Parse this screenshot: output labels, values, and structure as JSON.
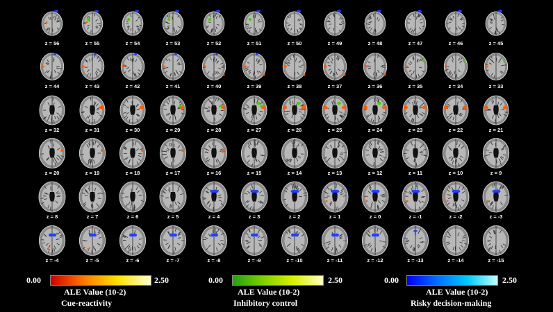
{
  "figure": {
    "z_labels": [
      [
        "z = 56",
        "z = 55",
        "z = 54",
        "z = 53",
        "z = 52",
        "z = 51",
        "z = 50",
        "z = 49",
        "z = 48",
        "z = 47",
        "z = 46",
        "z = 45"
      ],
      [
        "z = 44",
        "z = 43",
        "z = 42",
        "z = 41",
        "z = 40",
        "z = 39",
        "z = 38",
        "z = 37",
        "z = 36",
        "z = 35",
        "z = 34",
        "z = 33"
      ],
      [
        "z = 32",
        "z = 31",
        "z = 30",
        "z = 29",
        "z = 28",
        "z = 27",
        "z = 26",
        "z = 25",
        "z = 24",
        "z = 23",
        "z = 22",
        "z = 21"
      ],
      [
        "z = 20",
        "z = 19",
        "z = 18",
        "z = 17",
        "z = 16",
        "z = 15",
        "z = 14",
        "z = 13",
        "z = 12",
        "z = 11",
        "z = 10",
        "z = 9"
      ],
      [
        "z = 8",
        "z = 7",
        "z = 6",
        "z = 5",
        "z = 4",
        "z = 3",
        "z = 2",
        "z = 1",
        "z = 0",
        "z = -1",
        "z = -2",
        "z = -3"
      ],
      [
        "z = -4",
        "z = -5",
        "z = -6",
        "z = -7",
        "z = -8",
        "z = -9",
        "z = -10",
        "z = -11",
        "z = -12",
        "z = -13",
        "z = -14",
        "z = -15"
      ]
    ],
    "legends": [
      {
        "min": "0.00",
        "max": "2.50",
        "value_label": "ALE Value",
        "unit": "(10-2)",
        "category": "Cue-reactivity",
        "colors": [
          "#cc0000",
          "#ff7a00",
          "#ffe000",
          "#ffffd0"
        ]
      },
      {
        "min": "0.00",
        "max": "2.50",
        "value_label": "ALE Value",
        "unit": "(10-2)",
        "category": "Inhibitory control",
        "colors": [
          "#22a010",
          "#7fd000",
          "#d8f000",
          "#ffffc0"
        ]
      },
      {
        "min": "0.00",
        "max": "2.50",
        "value_label": "ALE Value",
        "unit": "(10-2)",
        "category": "Risky decision-making",
        "colors": [
          "#0000ff",
          "#0070ff",
          "#00c8ff",
          "#c0ffff"
        ]
      }
    ],
    "colors": {
      "background": "#000000",
      "cue": "#ff5a00",
      "inhibitory": "#44cc00",
      "risky": "#1a3cff"
    }
  }
}
